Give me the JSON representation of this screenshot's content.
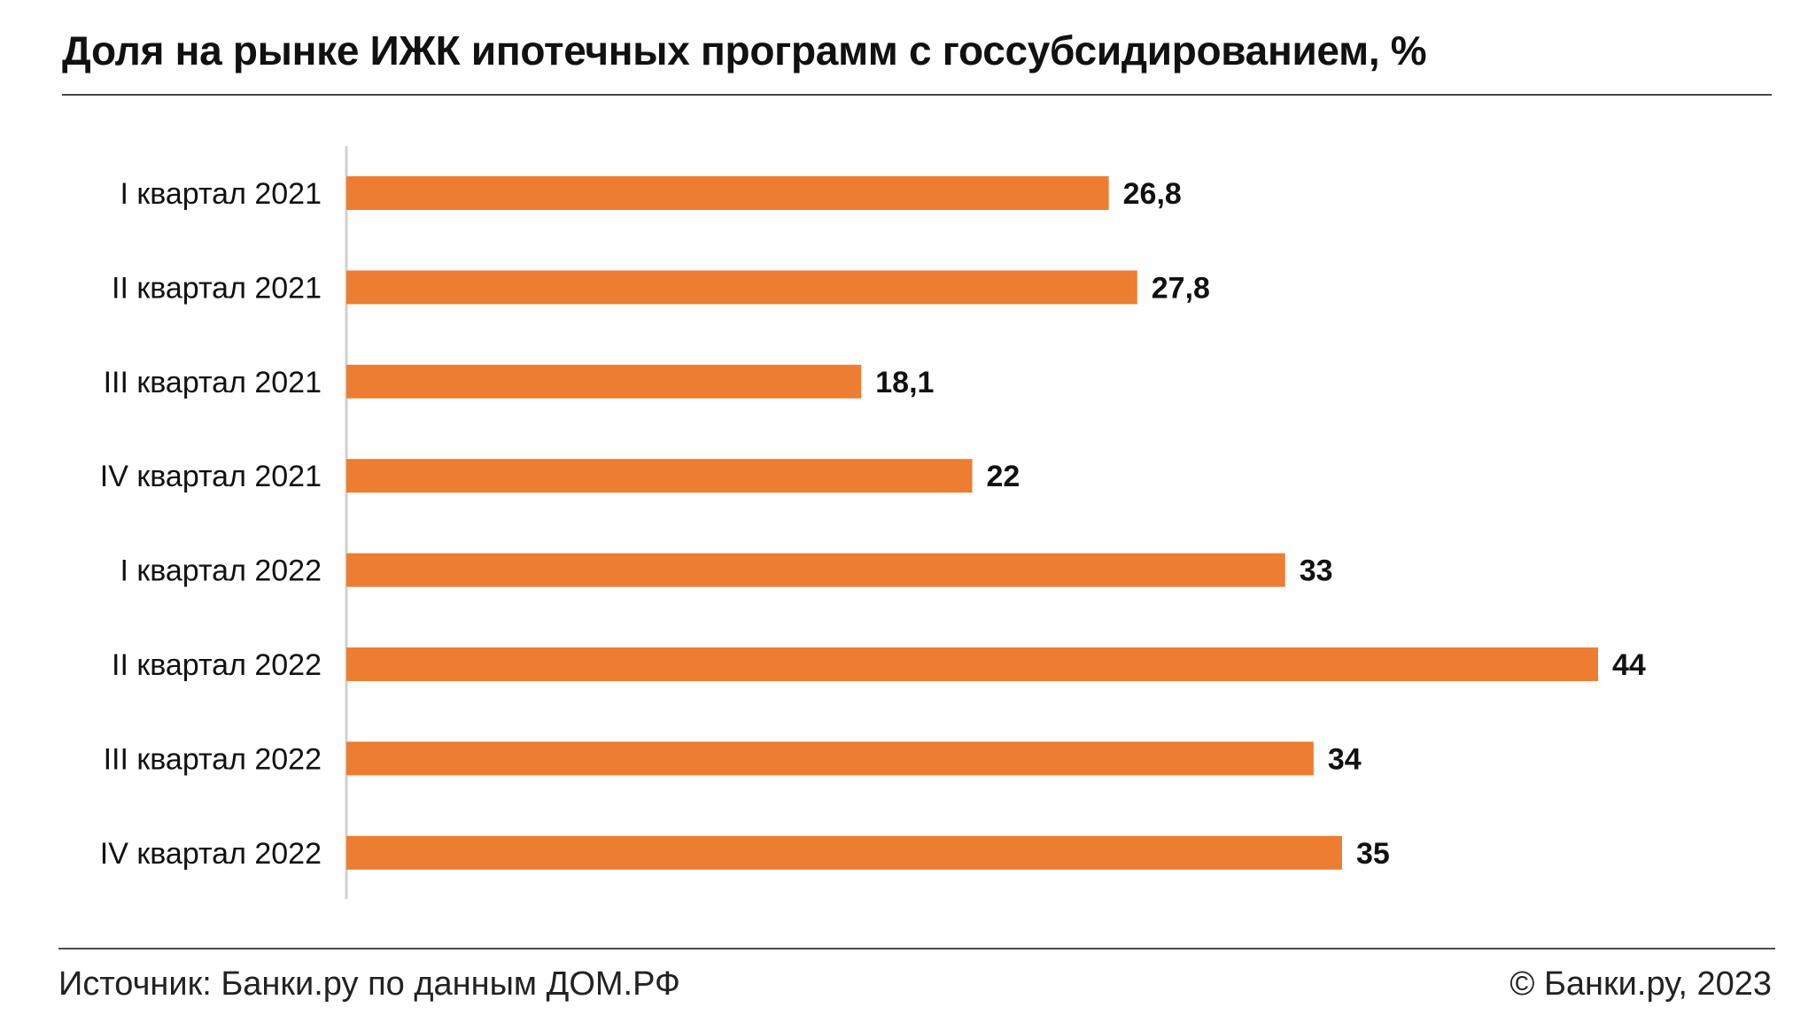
{
  "header": {
    "title": "Доля на рынке ИЖК ипотечных программ с госсубсидированием, %"
  },
  "footer": {
    "source": "Источник: Банки.ру по данным ДОМ.РФ",
    "copyright": "© Банки.ру, 2023"
  },
  "colors": {
    "bar": "#ED7D31",
    "axis": "#D0D0D0",
    "rule": "#4A4A4A",
    "text": "#111111"
  },
  "chart_data": {
    "type": "bar",
    "orientation": "horizontal",
    "title": "Доля на рынке ИЖК ипотечных программ с госсубсидированием, %",
    "categories": [
      "I квартал 2021",
      "II квартал 2021",
      "III квартал 2021",
      "IV квартал 2021",
      "I квартал 2022",
      "II квартал 2022",
      "III квартал 2022",
      "IV квартал 2022"
    ],
    "values": [
      26.8,
      27.8,
      18.1,
      22,
      33,
      44,
      34,
      35
    ],
    "value_labels": [
      "26,8",
      "27,8",
      "18,1",
      "22",
      "33",
      "44",
      "34",
      "35"
    ],
    "xlim": [
      0,
      44
    ],
    "grid": false,
    "legend": "none"
  }
}
